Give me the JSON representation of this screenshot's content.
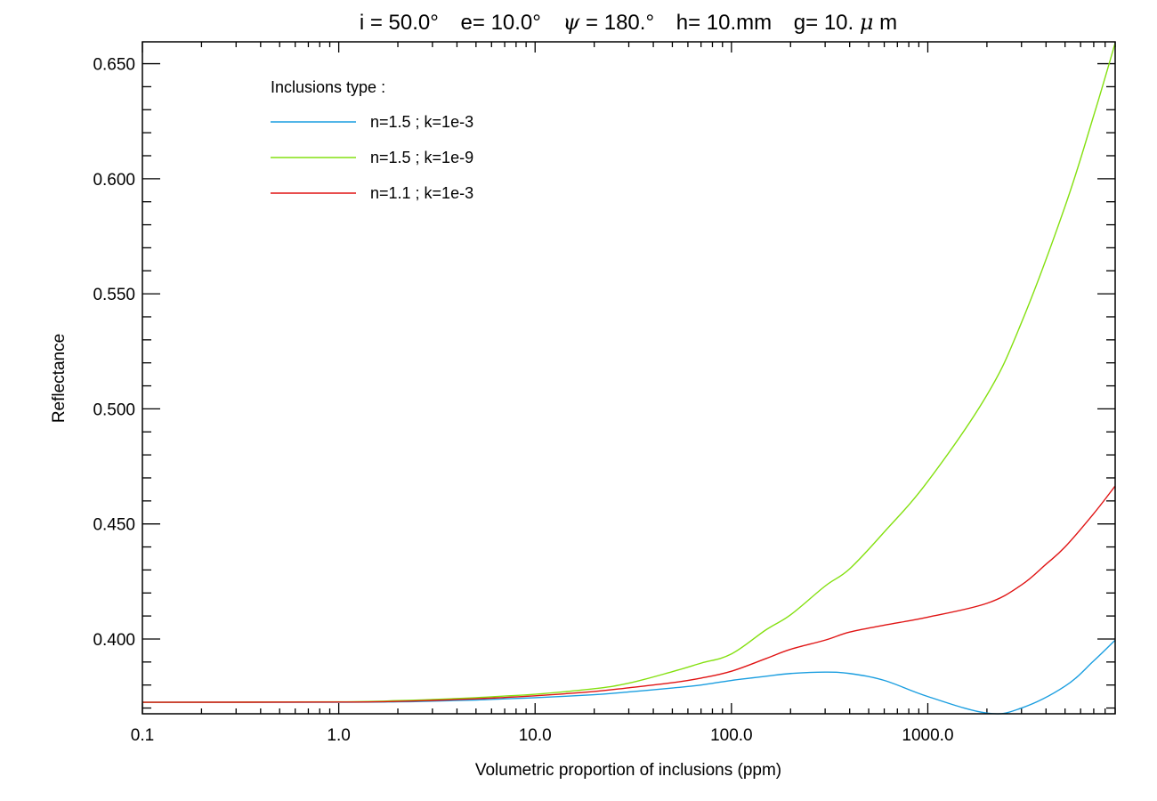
{
  "chart_data": {
    "type": "line",
    "title": {
      "i_label": "i = 50.0°",
      "e_label": "e= 10.0°",
      "psi_symbol": "ψ",
      "psi_value": "= 180.°",
      "h_label": "h= 10.mm",
      "g_label": "g=  10.",
      "g_mu": "μ",
      "g_unit": "m"
    },
    "xlabel": "Volumetric proportion of inclusions (ppm)",
    "ylabel": "Reflectance",
    "xscale": "log",
    "xlim": [
      0.1,
      9000
    ],
    "ylim": [
      0.3675,
      0.6595
    ],
    "xticks": [
      {
        "value": 0.1,
        "label": "0.1"
      },
      {
        "value": 1,
        "label": "1.0"
      },
      {
        "value": 10,
        "label": "10.0"
      },
      {
        "value": 100,
        "label": "100.0"
      },
      {
        "value": 1000,
        "label": "1000.0"
      }
    ],
    "yticks": [
      {
        "value": 0.4,
        "label": "0.400"
      },
      {
        "value": 0.45,
        "label": "0.450"
      },
      {
        "value": 0.5,
        "label": "0.500"
      },
      {
        "value": 0.55,
        "label": "0.550"
      },
      {
        "value": 0.6,
        "label": "0.600"
      },
      {
        "value": 0.65,
        "label": "0.650"
      }
    ],
    "legend_title": "Inclusions type :",
    "legend_position": "top-left",
    "series": [
      {
        "name": "n=1.5 ; k=1e-3",
        "color": "#1a9ee0",
        "x": [
          0.1,
          1,
          2,
          3,
          5,
          7,
          10,
          20,
          30,
          50,
          70,
          100,
          150,
          200,
          300,
          400,
          600,
          1000,
          2000,
          3000,
          5000,
          7000,
          9000
        ],
        "y": [
          0.3725,
          0.3725,
          0.3727,
          0.373,
          0.3735,
          0.374,
          0.3745,
          0.3758,
          0.377,
          0.3787,
          0.38,
          0.382,
          0.3838,
          0.385,
          0.3856,
          0.385,
          0.382,
          0.375,
          0.3678,
          0.37,
          0.3795,
          0.3905,
          0.3995
        ]
      },
      {
        "name": "n=1.5 ; k=1e-9",
        "color": "#84e010",
        "x": [
          0.1,
          1,
          2,
          3,
          5,
          7,
          10,
          20,
          30,
          50,
          70,
          100,
          150,
          200,
          300,
          400,
          600,
          1000,
          2000,
          3000,
          5000,
          7000,
          9000
        ],
        "y": [
          0.3725,
          0.3727,
          0.3732,
          0.3737,
          0.3745,
          0.3752,
          0.376,
          0.3784,
          0.3808,
          0.3858,
          0.3895,
          0.3935,
          0.404,
          0.4105,
          0.423,
          0.4305,
          0.4465,
          0.4685,
          0.506,
          0.5375,
          0.588,
          0.6275,
          0.659
        ]
      },
      {
        "name": "n=1.1 ; k=1e-3",
        "color": "#e01414",
        "x": [
          0.1,
          1,
          2,
          3,
          5,
          7,
          10,
          20,
          30,
          50,
          70,
          100,
          150,
          200,
          300,
          400,
          600,
          1000,
          2000,
          3000,
          4000,
          5000,
          7000,
          9000
        ],
        "y": [
          0.3725,
          0.3726,
          0.3729,
          0.3733,
          0.374,
          0.3746,
          0.3753,
          0.3772,
          0.3788,
          0.381,
          0.383,
          0.386,
          0.3915,
          0.3955,
          0.3995,
          0.403,
          0.406,
          0.4095,
          0.4155,
          0.4235,
          0.4325,
          0.44,
          0.4545,
          0.4665
        ]
      }
    ]
  }
}
